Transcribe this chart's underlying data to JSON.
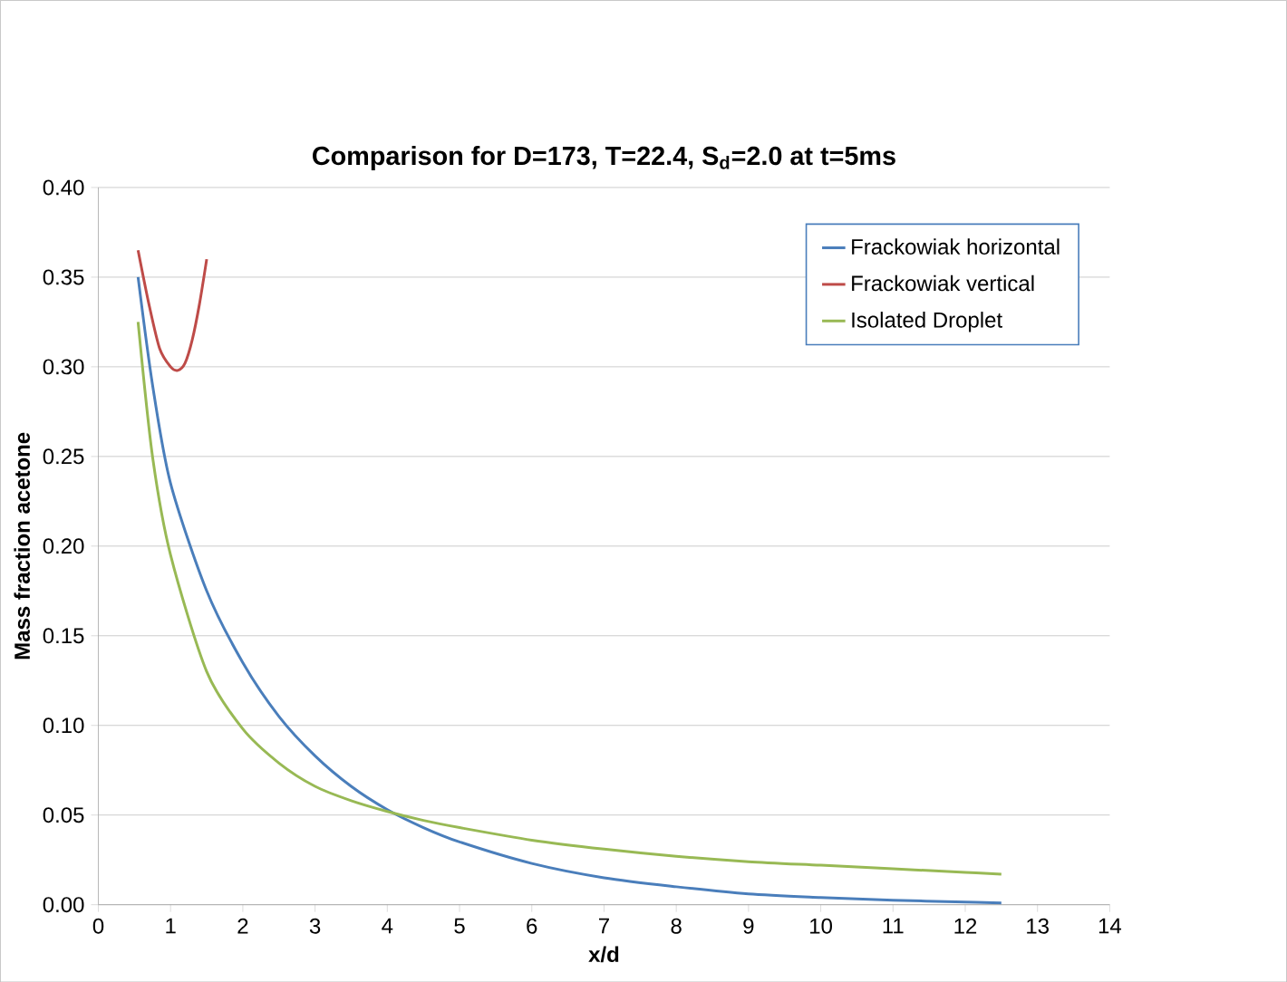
{
  "chart_data": {
    "type": "line",
    "title": "Comparison for D=173, T=22.4, S$_{d}$=2.0 at t=5ms",
    "xlabel": "x/d",
    "ylabel": "Mass fraction acetone",
    "xlim": [
      0,
      14
    ],
    "xticks": [
      0,
      1,
      2,
      3,
      4,
      5,
      6,
      7,
      8,
      9,
      10,
      11,
      12,
      13,
      14
    ],
    "ylim": [
      0,
      0.4
    ],
    "yticks": [
      {
        "value": 0,
        "label": "0.00"
      },
      {
        "value": 0.05,
        "label": "0.05"
      },
      {
        "value": 0.1,
        "label": "0.10"
      },
      {
        "value": 0.15,
        "label": "0.15"
      },
      {
        "value": 0.2,
        "label": "0.20"
      },
      {
        "value": 0.25,
        "label": "0.25"
      },
      {
        "value": 0.3,
        "label": "0.30"
      },
      {
        "value": 0.35,
        "label": "0.35"
      },
      {
        "value": 0.4,
        "label": "0.40"
      }
    ],
    "grid": "y",
    "legend": "top right",
    "marker": "none",
    "line_style": "solid",
    "series": [
      {
        "name": "Frackowiak horizontal",
        "color": "#4a7ebb",
        "x": [
          0.55,
          0.75,
          1,
          1.5,
          2,
          2.5,
          3,
          3.5,
          4,
          4.5,
          5,
          6,
          7,
          8,
          9,
          10,
          11,
          12,
          12.5
        ],
        "values": [
          0.35,
          0.29,
          0.235,
          0.175,
          0.135,
          0.105,
          0.083,
          0.066,
          0.053,
          0.043,
          0.035,
          0.023,
          0.015,
          0.01,
          0.006,
          0.004,
          0.0025,
          0.0015,
          0.001
        ]
      },
      {
        "name": "Frackowiak vertical",
        "color": "#be4b48",
        "x": [
          0.55,
          0.7,
          0.85,
          1,
          1.1,
          1.2,
          1.3,
          1.4,
          1.5
        ],
        "values": [
          0.365,
          0.335,
          0.31,
          0.3,
          0.298,
          0.302,
          0.315,
          0.335,
          0.36
        ]
      },
      {
        "name": "Isolated Droplet",
        "color": "#98b954",
        "x": [
          0.55,
          0.75,
          1,
          1.5,
          2,
          2.5,
          3,
          3.5,
          4,
          4.5,
          5,
          6,
          7,
          8,
          9,
          10,
          11,
          12,
          12.5
        ],
        "values": [
          0.325,
          0.25,
          0.195,
          0.13,
          0.098,
          0.079,
          0.066,
          0.058,
          0.052,
          0.047,
          0.043,
          0.036,
          0.031,
          0.027,
          0.024,
          0.022,
          0.02,
          0.018,
          0.017
        ]
      }
    ]
  }
}
